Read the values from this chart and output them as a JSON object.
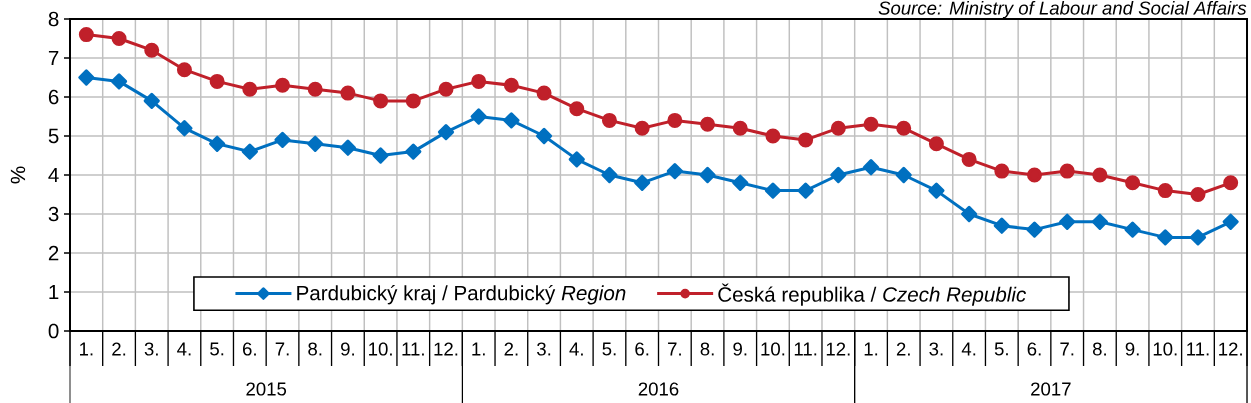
{
  "chart_data": {
    "type": "line",
    "ylabel": "%",
    "categories": [
      "1.",
      "2.",
      "3.",
      "4.",
      "5.",
      "6.",
      "7.",
      "8.",
      "9.",
      "10.",
      "11.",
      "12.",
      "1.",
      "2.",
      "3.",
      "4.",
      "5.",
      "6.",
      "7.",
      "8.",
      "9.",
      "10.",
      "11.",
      "12.",
      "1.",
      "2.",
      "3.",
      "4.",
      "5.",
      "6.",
      "7.",
      "8.",
      "9.",
      "10.",
      "11.",
      "12."
    ],
    "ylim": [
      0,
      8
    ],
    "yticks": [
      0,
      1,
      2,
      3,
      4,
      5,
      6,
      7,
      8
    ],
    "grid": true,
    "legend": "bottom",
    "line_style": "solid",
    "annotations": [
      "Source: Ministry of Labour and Social Affairs",
      "2015",
      "2016",
      "2017"
    ],
    "series": [
      {
        "name": "Pardubický kraj / Pardubický *Region*",
        "color": "#0070c0",
        "marker": "diamond",
        "values": [
          6.5,
          6.4,
          5.9,
          5.2,
          4.8,
          4.6,
          4.9,
          4.8,
          4.7,
          4.5,
          4.6,
          5.1,
          5.5,
          5.4,
          5.0,
          4.4,
          4.0,
          3.8,
          4.1,
          4.0,
          3.8,
          3.6,
          3.6,
          4.0,
          4.2,
          4.0,
          3.6,
          3.0,
          2.7,
          2.6,
          2.8,
          2.8,
          2.6,
          2.4,
          2.4,
          2.8
        ]
      },
      {
        "name": "Česká republika / *Czech Republic*",
        "color": "#c0202a",
        "marker": "circle",
        "values": [
          7.6,
          7.5,
          7.2,
          6.7,
          6.4,
          6.2,
          6.3,
          6.2,
          6.1,
          5.9,
          5.9,
          6.2,
          6.4,
          6.3,
          6.1,
          5.7,
          5.4,
          5.2,
          5.4,
          5.3,
          5.2,
          5.0,
          4.9,
          5.2,
          5.3,
          5.2,
          4.8,
          4.4,
          4.1,
          4.0,
          4.1,
          4.0,
          3.8,
          3.6,
          3.5,
          3.8
        ]
      }
    ]
  }
}
